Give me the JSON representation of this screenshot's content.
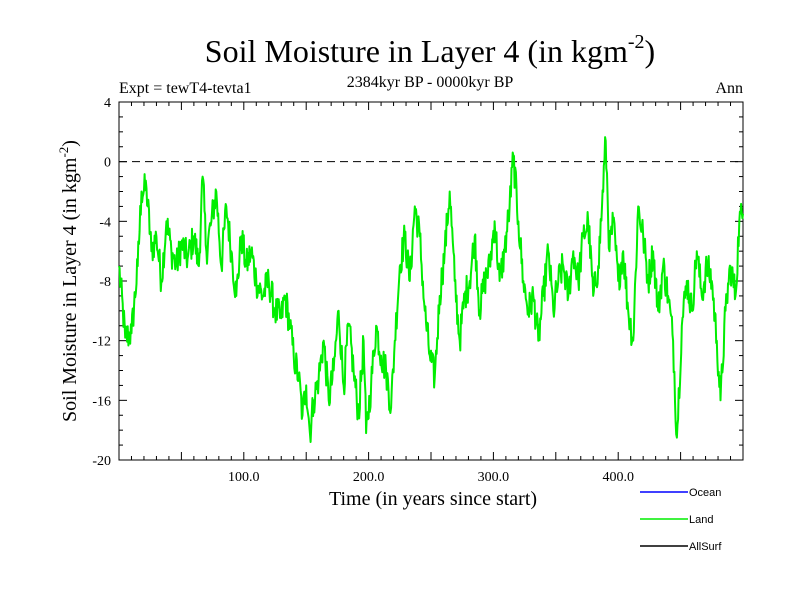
{
  "chart_data": {
    "type": "line",
    "title": "Soil Moisture in Layer 4 (in kgm",
    "title_sup": "-2",
    "title_close": ")",
    "subtitle": "2384kyr BP - 0000kyr BP",
    "left_label": "Expt = tewT4-tevta1",
    "right_label": "Ann",
    "xlabel": "Time (in years since start)",
    "ylabel": "Soil Moisture in Layer 4 (in kgm",
    "ylabel_sup": "-2",
    "ylabel_close": ")",
    "xlim": [
      0,
      500
    ],
    "ylim": [
      -20,
      4
    ],
    "x_ticks": [
      100,
      200,
      300,
      400
    ],
    "x_tick_labels": [
      "100.0",
      "200.0",
      "300.0",
      "400.0"
    ],
    "y_ticks": [
      4,
      0,
      -4,
      -8,
      -12,
      -16,
      -20
    ],
    "y_tick_labels": [
      "4",
      "0",
      "-4",
      "-8",
      "-12",
      "-16",
      "-20"
    ],
    "reference_line": 0,
    "legend": [
      "Ocean",
      "Land",
      "AllSurf"
    ],
    "colors": {
      "Ocean": "#0000ff",
      "Land": "#00ee00",
      "AllSurf": "#000000"
    },
    "series": [
      {
        "name": "Land",
        "color": "#00ee00",
        "anchors": [
          [
            0,
            -7
          ],
          [
            5,
            -11.8
          ],
          [
            10,
            -11.5
          ],
          [
            15,
            -7
          ],
          [
            18,
            -2
          ],
          [
            22,
            -1.8
          ],
          [
            26,
            -6
          ],
          [
            30,
            -5
          ],
          [
            34,
            -8
          ],
          [
            38,
            -4
          ],
          [
            42,
            -6
          ],
          [
            46,
            -7
          ],
          [
            50,
            -5.5
          ],
          [
            55,
            -6.5
          ],
          [
            60,
            -5
          ],
          [
            64,
            -7
          ],
          [
            67,
            -1
          ],
          [
            70,
            -6
          ],
          [
            74,
            -4
          ],
          [
            78,
            -2
          ],
          [
            82,
            -7
          ],
          [
            86,
            -3
          ],
          [
            90,
            -6
          ],
          [
            94,
            -9
          ],
          [
            98,
            -5
          ],
          [
            102,
            -7
          ],
          [
            106,
            -6
          ],
          [
            110,
            -8
          ],
          [
            115,
            -9
          ],
          [
            120,
            -8
          ],
          [
            125,
            -10
          ],
          [
            130,
            -10.5
          ],
          [
            133,
            -9
          ],
          [
            137,
            -11
          ],
          [
            140,
            -13
          ],
          [
            144,
            -14.5
          ],
          [
            147,
            -17
          ],
          [
            150,
            -15
          ],
          [
            153,
            -18.2
          ],
          [
            156,
            -16
          ],
          [
            160,
            -14.5
          ],
          [
            164,
            -12
          ],
          [
            168,
            -16
          ],
          [
            172,
            -14
          ],
          [
            176,
            -10
          ],
          [
            180,
            -15
          ],
          [
            184,
            -11
          ],
          [
            188,
            -14
          ],
          [
            192,
            -17
          ],
          [
            196,
            -12
          ],
          [
            198,
            -18.2
          ],
          [
            202,
            -15
          ],
          [
            206,
            -11
          ],
          [
            210,
            -13
          ],
          [
            214,
            -14
          ],
          [
            218,
            -16.5
          ],
          [
            221,
            -12
          ],
          [
            225,
            -7
          ],
          [
            229,
            -5
          ],
          [
            233,
            -8
          ],
          [
            237,
            -3
          ],
          [
            241,
            -5
          ],
          [
            245,
            -10
          ],
          [
            249,
            -13
          ],
          [
            253,
            -14.5
          ],
          [
            257,
            -9
          ],
          [
            261,
            -6
          ],
          [
            265,
            -2
          ],
          [
            269,
            -8
          ],
          [
            273,
            -12
          ],
          [
            277,
            -9
          ],
          [
            281,
            -8
          ],
          [
            285,
            -5
          ],
          [
            289,
            -10
          ],
          [
            293,
            -8
          ],
          [
            297,
            -7
          ],
          [
            301,
            -4
          ],
          [
            305,
            -8
          ],
          [
            309,
            -6
          ],
          [
            313,
            -3
          ],
          [
            316,
            0.4
          ],
          [
            320,
            -4
          ],
          [
            324,
            -8
          ],
          [
            328,
            -10
          ],
          [
            332,
            -9
          ],
          [
            336,
            -12
          ],
          [
            340,
            -9
          ],
          [
            344,
            -6
          ],
          [
            348,
            -10
          ],
          [
            352,
            -8
          ],
          [
            356,
            -7
          ],
          [
            360,
            -9
          ],
          [
            364,
            -6
          ],
          [
            368,
            -8
          ],
          [
            372,
            -5
          ],
          [
            376,
            -4
          ],
          [
            380,
            -9
          ],
          [
            384,
            -7
          ],
          [
            387,
            -3
          ],
          [
            390,
            1.4
          ],
          [
            393,
            -6
          ],
          [
            396,
            -4
          ],
          [
            400,
            -8
          ],
          [
            404,
            -6
          ],
          [
            408,
            -10
          ],
          [
            412,
            -12
          ],
          [
            416,
            -3
          ],
          [
            420,
            -5
          ],
          [
            424,
            -8
          ],
          [
            428,
            -6
          ],
          [
            432,
            -10
          ],
          [
            436,
            -7
          ],
          [
            440,
            -9
          ],
          [
            444,
            -12
          ],
          [
            447,
            -18.5
          ],
          [
            451,
            -11
          ],
          [
            455,
            -8
          ],
          [
            459,
            -10
          ],
          [
            463,
            -6
          ],
          [
            467,
            -9
          ],
          [
            471,
            -7
          ],
          [
            475,
            -8
          ],
          [
            479,
            -12
          ],
          [
            482,
            -16
          ],
          [
            486,
            -10
          ],
          [
            490,
            -7
          ],
          [
            494,
            -9
          ],
          [
            497,
            -4
          ],
          [
            500,
            -3.5
          ]
        ]
      }
    ]
  }
}
